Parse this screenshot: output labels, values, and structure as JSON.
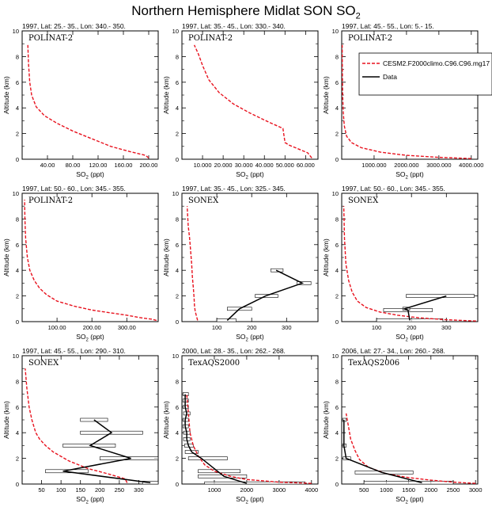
{
  "figure": {
    "title_main": "Northern Hemisphere Midlat SON SO",
    "title_sub": "2"
  },
  "legend": {
    "model_label": "CESM2.F2000climo.C96.C96.mg17",
    "data_label": "Data",
    "model_color": "#e8121e",
    "data_color": "#000000"
  },
  "chart_data": [
    {
      "type": "line",
      "header": "1997, Lat: 25.- 35., Lon: 340.- 350.",
      "campaign": "POLINAT-2",
      "xlabel": "SO2 (ppt)",
      "ylabel": "Altitude (km)",
      "xlim": [
        0,
        215
      ],
      "ylim": [
        0,
        10
      ],
      "xticks": [
        40,
        80,
        120,
        160,
        200
      ],
      "xticklabels": [
        "40.00",
        "80.00",
        "120.00",
        "160.00",
        "200.00"
      ],
      "yticks": [
        0,
        2,
        4,
        6,
        8,
        10
      ],
      "model": {
        "x": [
          200,
          195,
          170,
          140,
          110,
          80,
          55,
          35,
          22,
          15,
          12,
          10,
          9
        ],
        "y": [
          0.1,
          0.3,
          0.6,
          1.0,
          1.6,
          2.2,
          2.8,
          3.4,
          4.1,
          5.0,
          6.0,
          7.5,
          8.9
        ]
      },
      "data": null
    },
    {
      "type": "line",
      "header": "1997, Lat: 35.- 45., Lon: 330.- 340.",
      "campaign": "POLINAT-2",
      "xlabel": "SO2 (ppt)",
      "ylabel": "Altitude (km)",
      "xlim": [
        0,
        66000
      ],
      "ylim": [
        0,
        10
      ],
      "xticks": [
        10000,
        20000,
        30000,
        40000,
        50000,
        60000
      ],
      "xticklabels": [
        "10.000",
        "20.000",
        "30.000",
        "40.000",
        "50.000",
        "60.000"
      ],
      "yticks": [
        0,
        2,
        4,
        6,
        8,
        10
      ],
      "model": {
        "x": [
          63000,
          61000,
          55000,
          52000,
          50000,
          49000,
          42000,
          33000,
          25000,
          18000,
          13000,
          10000,
          8000,
          6000
        ],
        "y": [
          0.1,
          0.5,
          0.9,
          1.1,
          1.3,
          2.4,
          2.9,
          3.6,
          4.3,
          5.2,
          6.2,
          7.3,
          8.2,
          8.9
        ]
      },
      "data": null
    },
    {
      "type": "line",
      "header": "1997, Lat: 45.- 55., Lon: 5.- 15.",
      "campaign": "POLINAT-2",
      "xlabel": "SO2 (ppt)",
      "ylabel": "Altitude (km)",
      "xlim": [
        0,
        4200000
      ],
      "ylim": [
        0,
        10
      ],
      "xticks": [
        1000000,
        2000000,
        3000000,
        4000000
      ],
      "xticklabels": [
        "1000.000",
        "2000.000",
        "3000.000",
        "4000.000"
      ],
      "yticks": [
        0,
        2,
        4,
        6,
        8,
        10
      ],
      "model": {
        "x": [
          4000000,
          3000000,
          2000000,
          1200000,
          600000,
          300000,
          150000,
          80000,
          50000,
          30000,
          20000,
          15000
        ],
        "y": [
          0.05,
          0.15,
          0.3,
          0.55,
          0.9,
          1.3,
          1.8,
          2.6,
          3.6,
          5.0,
          7.0,
          8.9
        ]
      },
      "data": null
    },
    {
      "type": "line",
      "header": "1997, Lat: 50.- 60., Lon: 345.- 355.",
      "campaign": "POLINAT-2",
      "xlabel": "SO2 (ppt)",
      "ylabel": "Altitude (km)",
      "xlim": [
        0,
        390
      ],
      "ylim": [
        0,
        10
      ],
      "xticks": [
        100,
        200,
        300
      ],
      "xticklabels": [
        "100.00",
        "200.00",
        "300.00"
      ],
      "yticks": [
        0,
        2,
        4,
        6,
        8,
        10
      ],
      "model": {
        "x": [
          385,
          370,
          340,
          300,
          250,
          200,
          150,
          100,
          70,
          50,
          35,
          22,
          15,
          10,
          8,
          7
        ],
        "y": [
          0.1,
          0.2,
          0.3,
          0.5,
          0.7,
          0.9,
          1.2,
          1.6,
          2.1,
          2.6,
          3.2,
          4.0,
          5.0,
          6.5,
          8.0,
          9.5
        ]
      },
      "data": null
    },
    {
      "type": "line",
      "header": "1997, Lat: 35.- 45., Lon: 325.- 345.",
      "campaign": "SONEX",
      "xlabel": "SO2 (ppt)",
      "ylabel": "Altitude (km)",
      "xlim": [
        0,
        390
      ],
      "ylim": [
        0,
        10
      ],
      "xticks": [
        100,
        200,
        300
      ],
      "xticklabels": [
        "100",
        "200",
        "300"
      ],
      "yticks": [
        0,
        2,
        4,
        6,
        8,
        10
      ],
      "model": {
        "x": [
          45,
          42,
          38,
          36,
          35,
          33,
          30,
          28,
          25,
          22,
          18,
          15
        ],
        "y": [
          0.1,
          0.4,
          0.8,
          1.2,
          1.8,
          2.5,
          3.5,
          4.5,
          5.5,
          6.5,
          7.5,
          9.0
        ]
      },
      "data": {
        "x": [
          130,
          165,
          240,
          345,
          270
        ],
        "y": [
          0.1,
          1.0,
          2.0,
          3.0,
          4.0
        ],
        "xerr_low": [
          100,
          130,
          210,
          330,
          255
        ],
        "xerr_high": [
          155,
          200,
          275,
          370,
          290
        ]
      }
    },
    {
      "type": "line",
      "header": "1997, Lat: 50.- 60., Lon: 345.- 355.",
      "campaign": "SONEX",
      "xlabel": "SO2 (ppt)",
      "ylabel": "Altitude (km)",
      "xlim": [
        0,
        390
      ],
      "ylim": [
        0,
        10
      ],
      "xticks": [
        100,
        200,
        300
      ],
      "xticklabels": [
        "100",
        "200",
        "300"
      ],
      "yticks": [
        0,
        2,
        4,
        6,
        8,
        10
      ],
      "model": {
        "x": [
          385,
          300,
          220,
          160,
          110,
          70,
          45,
          30,
          20,
          12,
          8,
          6
        ],
        "y": [
          0.05,
          0.15,
          0.3,
          0.5,
          0.75,
          1.1,
          1.6,
          2.3,
          3.2,
          4.5,
          6.5,
          9.0
        ]
      },
      "data": {
        "x": [
          195,
          190,
          180,
          300
        ],
        "y": [
          0.1,
          0.9,
          1.0,
          2.0
        ],
        "xerr_low": [
          100,
          120,
          175,
          185
        ],
        "xerr_high": [
          290,
          260,
          195,
          380
        ]
      }
    },
    {
      "type": "line",
      "header": "1997, Lat: 45.- 55., Lon: 290.- 310.",
      "campaign": "SONEX",
      "xlabel": "SO2 (ppt)",
      "ylabel": "Altitude (km)",
      "xlim": [
        0,
        350
      ],
      "ylim": [
        0,
        10
      ],
      "xticks": [
        50,
        100,
        150,
        200,
        250,
        300
      ],
      "xticklabels": [
        "50",
        "100",
        "150",
        "200",
        "250",
        "300"
      ],
      "yticks": [
        0,
        2,
        4,
        6,
        8,
        10
      ],
      "model": {
        "x": [
          270,
          265,
          220,
          170,
          120,
          80,
          60,
          45,
          35,
          25,
          18,
          12,
          8
        ],
        "y": [
          0.1,
          0.4,
          0.8,
          1.2,
          1.8,
          2.5,
          3.0,
          3.5,
          4.0,
          5.0,
          6.0,
          7.5,
          9.0
        ]
      },
      "data": {
        "x": [
          330,
          105,
          280,
          175,
          230,
          185
        ],
        "y": [
          0.1,
          1.0,
          2.0,
          3.0,
          4.0,
          5.0
        ],
        "xerr_low": [
          310,
          60,
          200,
          105,
          150,
          150
        ],
        "xerr_high": [
          350,
          170,
          350,
          240,
          310,
          220
        ]
      }
    },
    {
      "type": "line",
      "header": "2000, Lat: 28.- 35., Lon: 262.- 268.",
      "campaign": "TexAQS2000",
      "xlabel": "SO2 (ppt)",
      "ylabel": "Altitude (km)",
      "xlim": [
        0,
        4200
      ],
      "ylim": [
        0,
        10
      ],
      "xticks": [
        1000,
        2000,
        3000,
        4000
      ],
      "xticklabels": [
        "1000",
        "2000",
        "3000",
        "4000"
      ],
      "yticks": [
        0,
        2,
        4,
        6,
        8,
        10
      ],
      "model": {
        "x": [
          4000,
          3000,
          2000,
          1500,
          1000,
          700,
          500,
          350,
          250,
          200,
          150
        ],
        "y": [
          0.05,
          0.15,
          0.35,
          0.6,
          1.0,
          1.5,
          2.2,
          3.0,
          4.0,
          5.5,
          7.0
        ]
      },
      "data": {
        "x": [
          2000,
          1300,
          1100,
          600,
          300,
          200,
          150,
          150,
          100,
          100,
          150,
          100,
          100,
          100
        ],
        "y": [
          0.05,
          0.6,
          1.0,
          2.0,
          2.5,
          3.0,
          3.5,
          4.0,
          4.5,
          5.0,
          5.5,
          6.0,
          6.5,
          7.0
        ],
        "xerr_low": [
          700,
          500,
          500,
          200,
          100,
          80,
          50,
          50,
          30,
          30,
          50,
          30,
          30,
          30
        ],
        "xerr_high": [
          3800,
          2000,
          1800,
          1400,
          500,
          350,
          250,
          250,
          200,
          200,
          250,
          200,
          200,
          200
        ]
      }
    },
    {
      "type": "line",
      "header": "2006, Lat: 27.- 34., Lon: 260.- 268.",
      "campaign": "TexAQS2006",
      "xlabel": "SO2 (ppt)",
      "ylabel": "Altitude (km)",
      "xlim": [
        0,
        3050
      ],
      "ylim": [
        0,
        10
      ],
      "xticks": [
        500,
        1000,
        1500,
        2000,
        2500,
        3000
      ],
      "xticklabels": [
        "500",
        "1000",
        "1500",
        "2000",
        "2500",
        "3000"
      ],
      "yticks": [
        0,
        2,
        4,
        6,
        8,
        10
      ],
      "model": {
        "x": [
          3000,
          2500,
          2000,
          1500,
          1000,
          600,
          400,
          300,
          200,
          150,
          100
        ],
        "y": [
          0.05,
          0.15,
          0.3,
          0.5,
          0.8,
          1.3,
          1.9,
          2.6,
          3.5,
          4.5,
          5.5
        ]
      },
      "data": {
        "x": [
          1800,
          900,
          100,
          50,
          50
        ],
        "y": [
          0.1,
          0.9,
          2.0,
          3.0,
          5.0
        ],
        "xerr_low": [
          500,
          300,
          30,
          20,
          20
        ],
        "xerr_high": [
          2500,
          1600,
          200,
          100,
          100
        ]
      }
    }
  ]
}
